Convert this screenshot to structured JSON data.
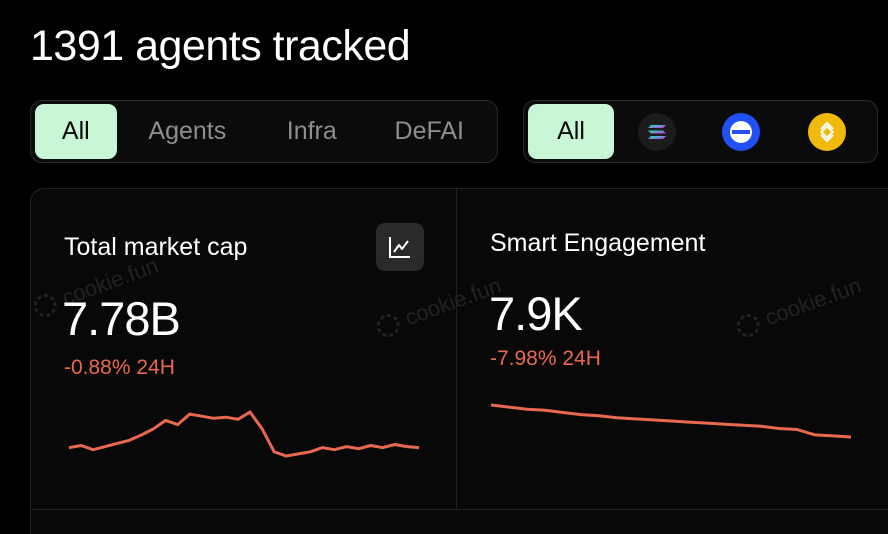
{
  "header": {
    "title": "1391 agents tracked"
  },
  "category_tabs": {
    "items": [
      {
        "label": "All",
        "active": true
      },
      {
        "label": "Agents",
        "active": false
      },
      {
        "label": "Infra",
        "active": false
      },
      {
        "label": "DeFAI",
        "active": false
      }
    ]
  },
  "chain_tabs": {
    "all_label": "All",
    "chains": [
      {
        "icon": "solana-icon"
      },
      {
        "icon": "base-icon"
      },
      {
        "icon": "bnb-icon"
      }
    ]
  },
  "watermark": {
    "text": "cookie.fun"
  },
  "cards": {
    "market_cap": {
      "title": "Total market cap",
      "value": "7.78B",
      "change": "-0.88% 24H",
      "change_color": "#e8694f",
      "trend": [
        18,
        20,
        16,
        19,
        22,
        25,
        30,
        36,
        44,
        40,
        50,
        48,
        46,
        47,
        45,
        52,
        36,
        14,
        10,
        12,
        14,
        18,
        16,
        19,
        17,
        20,
        18,
        21,
        19,
        18
      ]
    },
    "smart_engagement": {
      "title": "Smart Engagement",
      "value": "7.9K",
      "change": "-7.98% 24H",
      "change_color": "#e8694f",
      "trend": [
        100,
        98,
        96,
        95,
        93,
        91,
        90,
        88,
        87,
        86,
        85,
        84,
        83,
        82,
        81,
        80,
        78,
        77,
        72,
        71,
        70
      ]
    }
  },
  "colors": {
    "accent": "#c8f6d6",
    "negative": "#e8694f",
    "background": "#000000"
  }
}
